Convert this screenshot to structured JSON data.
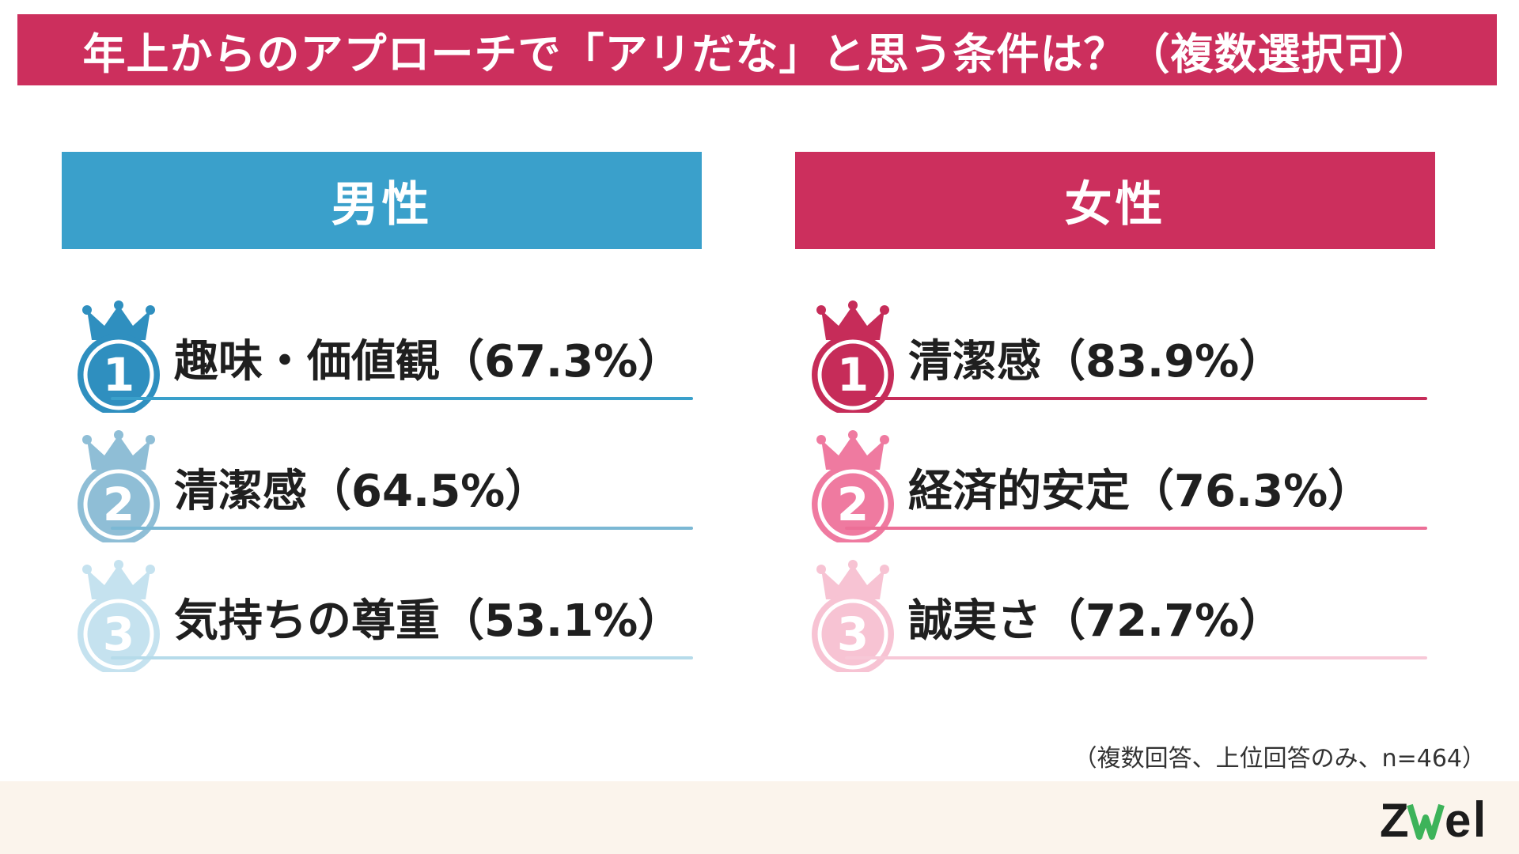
{
  "title": "年上からのアプローチで「アリだな」と思う条件は？（複数選択可）",
  "colors": {
    "female_primary": "#cc2f5d",
    "male_primary": "#3aa0cb",
    "footer_bg": "#fbf4ec"
  },
  "chart_data": [
    {
      "type": "table",
      "title": "男性",
      "categories": [
        "趣味・価値観",
        "清潔感",
        "気持ちの尊重"
      ],
      "values": [
        67.3,
        64.5,
        53.1
      ],
      "unit": "%",
      "ranks": [
        {
          "rank": "1",
          "item": "趣味・価値観",
          "pct": "67.3",
          "text": "趣味・価値観（67.3%）",
          "badge_color": "#2f8fbf",
          "line_color": "#3aa0cb"
        },
        {
          "rank": "2",
          "item": "清潔感",
          "pct": "64.5",
          "text": "清潔感（64.5%）",
          "badge_color": "#8fbed6",
          "line_color": "#7bb8d4"
        },
        {
          "rank": "3",
          "item": "気持ちの尊重",
          "pct": "53.1",
          "text": "気持ちの尊重（53.1%）",
          "badge_color": "#c5e2ef",
          "line_color": "#b6dbea"
        }
      ]
    },
    {
      "type": "table",
      "title": "女性",
      "categories": [
        "清潔感",
        "経済的安定",
        "誠実さ"
      ],
      "values": [
        83.9,
        76.3,
        72.7
      ],
      "unit": "%",
      "ranks": [
        {
          "rank": "1",
          "item": "清潔感",
          "pct": "83.9",
          "text": "清潔感（83.9%）",
          "badge_color": "#c62c59",
          "line_color": "#c62c59"
        },
        {
          "rank": "2",
          "item": "経済的安定",
          "pct": "76.3",
          "text": "経済的安定（76.3%）",
          "badge_color": "#ef7aa0",
          "line_color": "#ec6f97"
        },
        {
          "rank": "3",
          "item": "誠実さ",
          "pct": "72.7",
          "text": "誠実さ（72.7%）",
          "badge_color": "#f7c3d3",
          "line_color": "#f7c8d7"
        }
      ]
    }
  ],
  "footnote": "（複数回答、上位回答のみ、n=464）",
  "logo_text": "ZWeI"
}
